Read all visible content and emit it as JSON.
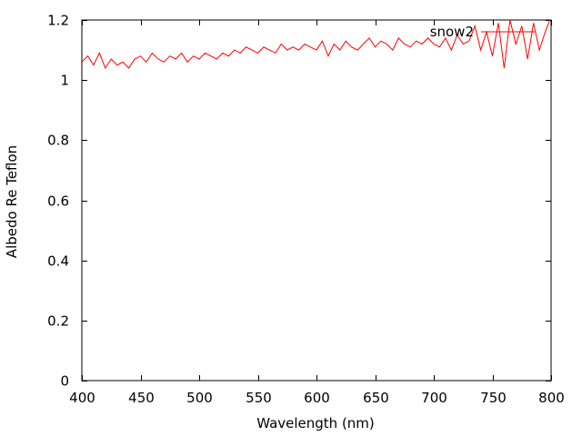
{
  "chart_data": {
    "type": "line",
    "xlabel": "Wavelength (nm)",
    "ylabel": "Albedo Re Teflon",
    "xlim": [
      400,
      800
    ],
    "ylim": [
      0,
      1.2
    ],
    "x_ticks": [
      400,
      450,
      500,
      550,
      600,
      650,
      700,
      750,
      800
    ],
    "x_tick_labels": [
      "400",
      "450",
      "500",
      "550",
      "600",
      "650",
      "700",
      "750",
      "800"
    ],
    "y_ticks": [
      0,
      0.2,
      0.4,
      0.6,
      0.8,
      1.0,
      1.2
    ],
    "y_tick_labels": [
      "0",
      "0.2",
      "0.4",
      "0.6",
      "0.8",
      "1",
      "1.2"
    ],
    "grid": false,
    "legend_position": "top-right",
    "series": [
      {
        "name": "snow2",
        "color": "#ff0000",
        "x": [
          400,
          405,
          410,
          415,
          420,
          425,
          430,
          435,
          440,
          445,
          450,
          455,
          460,
          465,
          470,
          475,
          480,
          485,
          490,
          495,
          500,
          505,
          510,
          515,
          520,
          525,
          530,
          535,
          540,
          545,
          550,
          555,
          560,
          565,
          570,
          575,
          580,
          585,
          590,
          595,
          600,
          605,
          610,
          615,
          620,
          625,
          630,
          635,
          640,
          645,
          650,
          655,
          660,
          665,
          670,
          675,
          680,
          685,
          690,
          695,
          700,
          705,
          710,
          715,
          720,
          725,
          730,
          735,
          740,
          745,
          750,
          755,
          760,
          765,
          770,
          775,
          780,
          785,
          790,
          795,
          800
        ],
        "values": [
          1.06,
          1.08,
          1.05,
          1.09,
          1.04,
          1.07,
          1.05,
          1.06,
          1.04,
          1.07,
          1.08,
          1.06,
          1.09,
          1.07,
          1.06,
          1.08,
          1.07,
          1.09,
          1.06,
          1.08,
          1.07,
          1.09,
          1.08,
          1.07,
          1.09,
          1.08,
          1.1,
          1.09,
          1.11,
          1.1,
          1.09,
          1.11,
          1.1,
          1.09,
          1.12,
          1.1,
          1.11,
          1.1,
          1.12,
          1.11,
          1.1,
          1.13,
          1.08,
          1.12,
          1.1,
          1.13,
          1.11,
          1.1,
          1.12,
          1.14,
          1.11,
          1.13,
          1.12,
          1.1,
          1.14,
          1.12,
          1.11,
          1.13,
          1.12,
          1.14,
          1.12,
          1.11,
          1.14,
          1.1,
          1.15,
          1.12,
          1.13,
          1.18,
          1.1,
          1.16,
          1.08,
          1.19,
          1.04,
          1.2,
          1.12,
          1.18,
          1.07,
          1.19,
          1.1,
          1.16,
          1.21
        ]
      }
    ]
  }
}
